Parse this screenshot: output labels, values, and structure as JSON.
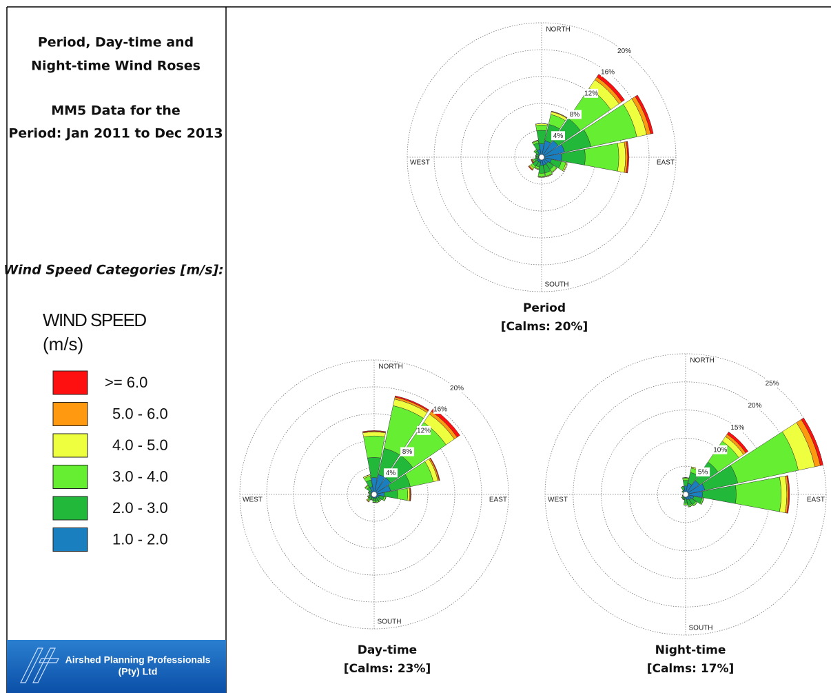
{
  "panel": {
    "title_lines": [
      "Period, Day-time and",
      "Night-time Wind Roses"
    ],
    "subtitle_lines": [
      "MM5 Data for the",
      "Period: Jan 2011 to Dec 2013"
    ],
    "heading": "Wind Speed Categories [m/s]:",
    "logo_lines": [
      "Airshed Planning Professionals",
      "(Pty) Ltd"
    ]
  },
  "legend": {
    "title_lines": [
      "WIND SPEED",
      "(m/s)"
    ],
    "items": [
      {
        "label": ">= 6.0",
        "color": "#ff1010"
      },
      {
        "label": "5.0 - 6.0",
        "color": "#ff9a10"
      },
      {
        "label": "4.0 - 5.0",
        "color": "#eeff40"
      },
      {
        "label": "3.0 - 4.0",
        "color": "#66ee33"
      },
      {
        "label": "2.0 - 3.0",
        "color": "#22b83a"
      },
      {
        "label": "1.0 - 2.0",
        "color": "#1a7fbf"
      }
    ]
  },
  "chart_data": [
    {
      "type": "windrose",
      "title": "Period",
      "subtitle": "[Calms: 20%]",
      "compass": {
        "north": "NORTH",
        "east": "EAST",
        "south": "SOUTH",
        "west": "WEST"
      },
      "rlim": [
        0,
        20
      ],
      "rticks": [
        {
          "value": 4,
          "label": "4%"
        },
        {
          "value": 8,
          "label": "8%"
        },
        {
          "value": 12,
          "label": "12%"
        },
        {
          "value": 16,
          "label": "16%"
        },
        {
          "value": 20,
          "label": "20%"
        }
      ],
      "grid": true,
      "series": [
        {
          "values": [
            0,
            0,
            0.5,
            0.4,
            0.2,
            0,
            0,
            0,
            0,
            0,
            0.1,
            0.1,
            0,
            0,
            0,
            0
          ]
        },
        {
          "values": [
            0,
            0.1,
            0.5,
            0.6,
            0.3,
            0,
            0,
            0,
            0,
            0,
            0.1,
            0.1,
            0,
            0,
            0,
            0
          ]
        },
        {
          "values": [
            0.2,
            0.4,
            1.5,
            1.5,
            1,
            0.2,
            0.1,
            0.1,
            0.1,
            0.1,
            0.2,
            0.1,
            0,
            0,
            0,
            0.1
          ]
        },
        {
          "values": [
            0.8,
            1.5,
            5.5,
            7,
            5,
            0.7,
            0.5,
            0.5,
            0.5,
            0.3,
            0.4,
            0.2,
            0.1,
            0.1,
            0.2,
            0.3
          ]
        },
        {
          "values": [
            2,
            2.5,
            4,
            4,
            3.5,
            1.5,
            1,
            1.2,
            1.2,
            0.7,
            0.8,
            0.5,
            0.3,
            0.3,
            0.5,
            1
          ]
        },
        {
          "values": [
            2,
            2.5,
            3,
            3.5,
            3,
            1.5,
            1.2,
            1.2,
            1.2,
            0.8,
            0.8,
            0.6,
            0.5,
            0.5,
            0.7,
            1.2
          ]
        }
      ]
    },
    {
      "type": "windrose",
      "title": "Day-time",
      "subtitle": "[Calms: 23%]",
      "compass": {
        "north": "NORTH",
        "east": "EAST",
        "south": "SOUTH",
        "west": "WEST"
      },
      "rlim": [
        0,
        20
      ],
      "rticks": [
        {
          "value": 4,
          "label": "4%"
        },
        {
          "value": 8,
          "label": "8%"
        },
        {
          "value": 12,
          "label": "12%"
        },
        {
          "value": 16,
          "label": "16%"
        },
        {
          "value": 20,
          "label": "20%"
        }
      ],
      "grid": true,
      "series": [
        {
          "values": [
            0.1,
            0.2,
            0.5,
            0.1,
            0.1,
            0,
            0,
            0,
            0,
            0,
            0,
            0,
            0,
            0,
            0,
            0
          ]
        },
        {
          "values": [
            0.1,
            0.3,
            0.5,
            0.2,
            0.1,
            0,
            0,
            0,
            0,
            0,
            0.1,
            0,
            0,
            0,
            0,
            0
          ]
        },
        {
          "values": [
            0.6,
            1,
            1.5,
            0.7,
            0.3,
            0,
            0,
            0,
            0,
            0,
            0.1,
            0.1,
            0,
            0,
            0.1,
            0.2
          ]
        },
        {
          "values": [
            3.2,
            6.5,
            6,
            3.5,
            1.5,
            0.3,
            0.2,
            0.2,
            0.2,
            0.1,
            0.2,
            0.1,
            0,
            0.1,
            0.3,
            0.6
          ]
        },
        {
          "values": [
            3,
            4,
            4,
            3,
            2,
            0.7,
            0.5,
            0.5,
            0.4,
            0.3,
            0.4,
            0.3,
            0.2,
            0.3,
            0.6,
            1
          ]
        },
        {
          "values": [
            2.5,
            3,
            3,
            2.5,
            1.5,
            0.8,
            0.6,
            0.6,
            0.6,
            0.5,
            0.6,
            0.5,
            0.5,
            0.5,
            0.7,
            1.2
          ]
        }
      ]
    },
    {
      "type": "windrose",
      "title": "Night-time",
      "subtitle": "[Calms: 17%]",
      "compass": {
        "north": "NORTH",
        "east": "EAST",
        "south": "SOUTH",
        "west": "WEST"
      },
      "rlim": [
        0,
        25
      ],
      "rticks": [
        {
          "value": 5,
          "label": "5%"
        },
        {
          "value": 10,
          "label": "10%"
        },
        {
          "value": 15,
          "label": "15%"
        },
        {
          "value": 20,
          "label": "20%"
        },
        {
          "value": 25,
          "label": "25%"
        }
      ],
      "grid": true,
      "series": [
        {
          "values": [
            0,
            0,
            0.5,
            0.5,
            0.2,
            0,
            0,
            0,
            0,
            0,
            0,
            0,
            0,
            0,
            0,
            0
          ]
        },
        {
          "values": [
            0,
            0,
            0.5,
            1,
            0.3,
            0,
            0,
            0,
            0,
            0,
            0,
            0,
            0,
            0,
            0,
            0
          ]
        },
        {
          "values": [
            0.1,
            0.2,
            1,
            3,
            1,
            0,
            0,
            0,
            0,
            0,
            0,
            0,
            0,
            0,
            0,
            0
          ]
        },
        {
          "values": [
            0.4,
            0.8,
            4.5,
            11,
            8,
            0.3,
            0.3,
            0.3,
            0.3,
            0.1,
            0.1,
            0,
            0,
            0,
            0.1,
            0.2
          ]
        },
        {
          "values": [
            1,
            2,
            4,
            6,
            6,
            1.5,
            1,
            1,
            0.8,
            0.3,
            0.3,
            0.2,
            0.1,
            0.1,
            0.3,
            0.5
          ]
        },
        {
          "values": [
            1.5,
            2,
            3,
            3.5,
            3,
            1.5,
            1.2,
            1,
            0.8,
            0.6,
            0.5,
            0.4,
            0.3,
            0.3,
            0.4,
            0.8
          ]
        }
      ]
    }
  ]
}
